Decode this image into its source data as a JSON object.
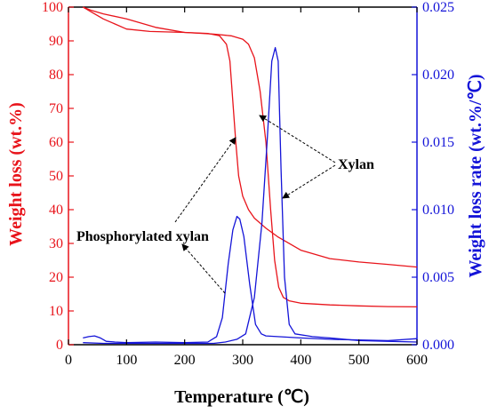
{
  "chart_data": {
    "type": "line",
    "title": "",
    "xlabel": "Temperature (℃)",
    "ylabel_left": "Weight loss (wt.%)",
    "ylabel_right": "Weight loss rate (wt.%/℃)",
    "xlim": [
      0,
      600
    ],
    "ylim_left": [
      0,
      100
    ],
    "ylim_right": [
      0,
      0.025
    ],
    "x_ticks": [
      0,
      100,
      200,
      300,
      400,
      500,
      600
    ],
    "y_left_ticks": [
      0,
      10,
      20,
      30,
      40,
      50,
      60,
      70,
      80,
      90,
      100
    ],
    "y_right_ticks": [
      "0.000",
      "0.005",
      "0.010",
      "0.015",
      "0.020",
      "0.025"
    ],
    "grid": false,
    "colors": {
      "left_axis": "#e8141b",
      "right_axis": "#1414d8",
      "annotation": "#000000"
    },
    "series": [
      {
        "axis": "left",
        "color": "#e8141b",
        "points": [
          [
            25,
            100
          ],
          [
            40,
            98.5
          ],
          [
            60,
            96.5
          ],
          [
            80,
            95
          ],
          [
            100,
            93.5
          ],
          [
            140,
            92.8
          ],
          [
            200,
            92.5
          ],
          [
            240,
            92.2
          ],
          [
            260,
            91.5
          ],
          [
            272,
            89
          ],
          [
            278,
            84
          ],
          [
            283,
            72
          ],
          [
            288,
            60
          ],
          [
            293,
            50
          ],
          [
            300,
            44
          ],
          [
            310,
            40
          ],
          [
            320,
            37.5
          ],
          [
            340,
            34.5
          ],
          [
            360,
            32
          ],
          [
            400,
            28
          ],
          [
            450,
            25.5
          ],
          [
            500,
            24.5
          ],
          [
            550,
            23.8
          ],
          [
            600,
            23
          ]
        ]
      },
      {
        "axis": "left",
        "color": "#e8141b",
        "points": [
          [
            25,
            100
          ],
          [
            40,
            99
          ],
          [
            60,
            98
          ],
          [
            100,
            96.5
          ],
          [
            150,
            94
          ],
          [
            200,
            92.5
          ],
          [
            250,
            92
          ],
          [
            280,
            91.5
          ],
          [
            300,
            90.5
          ],
          [
            310,
            89
          ],
          [
            320,
            85
          ],
          [
            330,
            75
          ],
          [
            340,
            60
          ],
          [
            348,
            40
          ],
          [
            355,
            25
          ],
          [
            362,
            17
          ],
          [
            370,
            14
          ],
          [
            380,
            13
          ],
          [
            400,
            12.3
          ],
          [
            450,
            11.8
          ],
          [
            500,
            11.5
          ],
          [
            550,
            11.3
          ],
          [
            600,
            11.2
          ]
        ]
      },
      {
        "axis": "right",
        "color": "#1414d8",
        "points": [
          [
            25,
            0.0005
          ],
          [
            35,
            0.0006
          ],
          [
            45,
            0.00065
          ],
          [
            55,
            0.0005
          ],
          [
            65,
            0.00025
          ],
          [
            80,
            0.0002
          ],
          [
            100,
            0.00015
          ],
          [
            150,
            0.0002
          ],
          [
            200,
            0.00015
          ],
          [
            240,
            0.0002
          ],
          [
            255,
            0.0006
          ],
          [
            265,
            0.002
          ],
          [
            275,
            0.006
          ],
          [
            283,
            0.0085
          ],
          [
            290,
            0.0095
          ],
          [
            295,
            0.0093
          ],
          [
            302,
            0.008
          ],
          [
            312,
            0.0045
          ],
          [
            322,
            0.0015
          ],
          [
            332,
            0.0008
          ],
          [
            340,
            0.00065
          ],
          [
            360,
            0.0006
          ],
          [
            400,
            0.0005
          ],
          [
            450,
            0.0004
          ],
          [
            500,
            0.00035
          ],
          [
            550,
            0.0003
          ],
          [
            600,
            0.00045
          ]
        ]
      },
      {
        "axis": "right",
        "color": "#1414d8",
        "points": [
          [
            25,
            0.00015
          ],
          [
            60,
            0.0001
          ],
          [
            100,
            0.0001
          ],
          [
            150,
            0.0001
          ],
          [
            200,
            0.0001
          ],
          [
            250,
            0.0001
          ],
          [
            270,
            0.0002
          ],
          [
            290,
            0.0004
          ],
          [
            305,
            0.0008
          ],
          [
            320,
            0.0035
          ],
          [
            333,
            0.009
          ],
          [
            342,
            0.015
          ],
          [
            350,
            0.021
          ],
          [
            356,
            0.022
          ],
          [
            361,
            0.021
          ],
          [
            366,
            0.013
          ],
          [
            372,
            0.005
          ],
          [
            380,
            0.0015
          ],
          [
            390,
            0.0008
          ],
          [
            420,
            0.0006
          ],
          [
            450,
            0.0005
          ],
          [
            500,
            0.0003
          ],
          [
            550,
            0.00025
          ],
          [
            600,
            0.0002
          ]
        ]
      }
    ],
    "annotations": [
      {
        "text": "Xylan",
        "x": 470,
        "y": 51.5
      },
      {
        "text": "Phosphorylated xylan",
        "x": 113,
        "y": 32.8
      }
    ]
  }
}
